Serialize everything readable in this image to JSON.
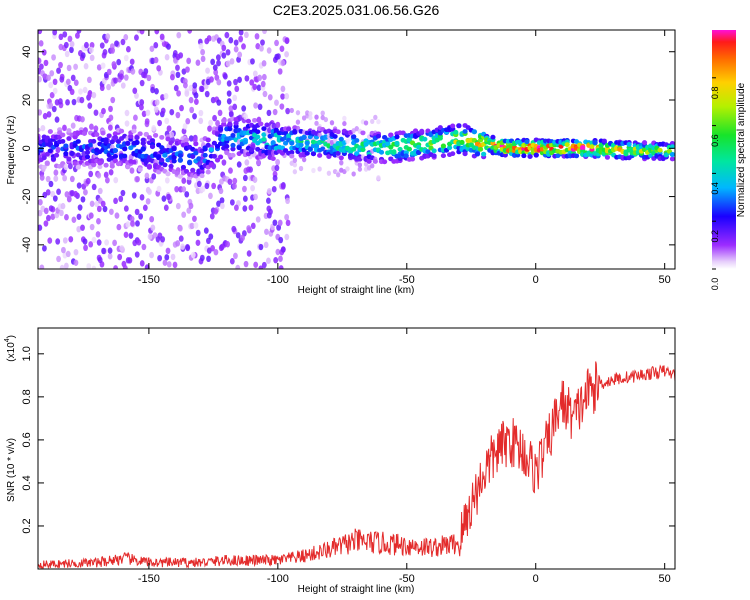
{
  "chart_data": [
    {
      "type": "heatmap",
      "title": "C2E3.2025.031.06.56.G26",
      "xlabel": "Height of straight line (km)",
      "ylabel": "Frequency (Hz)",
      "xlim": [
        -193,
        54
      ],
      "ylim": [
        -50,
        49
      ],
      "xticks": [
        -150,
        -100,
        -50,
        0,
        50
      ],
      "yticks": [
        -40,
        -20,
        0,
        20,
        40
      ],
      "colorbar": {
        "label": "Normalized spectral amplitude",
        "ticks": [
          "0.0",
          "0.2",
          "0.4",
          "0.6",
          "0.8"
        ],
        "range": [
          0,
          1
        ]
      },
      "ridge": {
        "description_points_x": [
          -193,
          -160,
          -130,
          -120,
          -100,
          -80,
          -60,
          -40,
          -30,
          -20,
          -10,
          0,
          20,
          40,
          54
        ],
        "center_freq_hz": [
          0,
          0,
          -5,
          5,
          3,
          2,
          0,
          2,
          4,
          2,
          0,
          0,
          0,
          -1,
          -1
        ],
        "peak_amplitude": [
          0.25,
          0.3,
          0.3,
          0.35,
          0.45,
          0.5,
          0.55,
          0.65,
          0.75,
          0.9,
          1.0,
          1.0,
          0.95,
          0.7,
          0.6
        ]
      }
    },
    {
      "type": "line",
      "xlabel": "Height of straight line (km)",
      "ylabel": "SNR (10 * v/v)",
      "ymultiplier": "(x10",
      "ymultiplier_exp": "4",
      "xlim": [
        -193,
        54
      ],
      "ylim": [
        0.0,
        1.12
      ],
      "xticks": [
        -150,
        -100,
        -50,
        0,
        50
      ],
      "yticks": [
        0.2,
        0.4,
        0.6,
        0.8,
        1.0
      ],
      "series": [
        {
          "color": "#e32b2b",
          "x": [
            -193,
            -170,
            -160,
            -150,
            -130,
            -120,
            -100,
            -90,
            -80,
            -70,
            -60,
            -50,
            -40,
            -30,
            -25,
            -20,
            -15,
            -10,
            -5,
            0,
            5,
            10,
            15,
            20,
            25,
            30,
            40,
            50,
            54
          ],
          "y": [
            0.02,
            0.03,
            0.05,
            0.03,
            0.03,
            0.04,
            0.04,
            0.06,
            0.09,
            0.13,
            0.12,
            0.11,
            0.1,
            0.12,
            0.3,
            0.45,
            0.55,
            0.6,
            0.55,
            0.45,
            0.6,
            0.78,
            0.7,
            0.82,
            0.86,
            0.88,
            0.9,
            0.92,
            0.9
          ]
        }
      ]
    }
  ]
}
